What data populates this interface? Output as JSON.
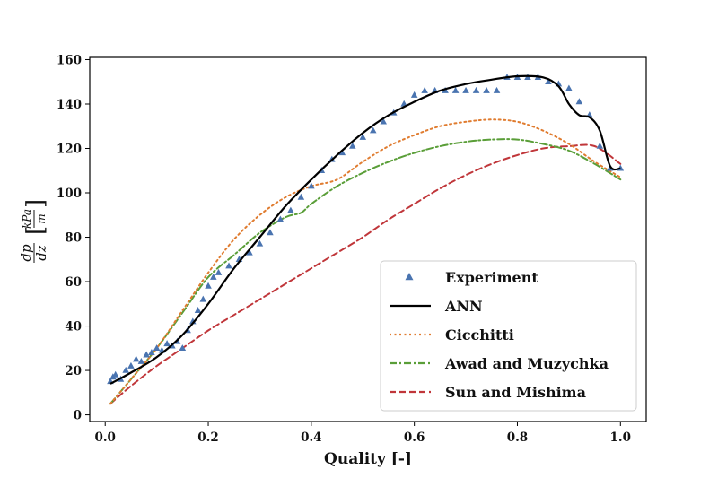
{
  "chart_data": {
    "type": "line",
    "title": "",
    "xlabel": "Quality [-]",
    "ylabel": {
      "numerator": "dp",
      "denominator": "dz",
      "unit_numerator": "kPa",
      "unit_denominator": "m"
    },
    "xlim": [
      -0.03,
      1.05
    ],
    "ylim": [
      -3,
      161
    ],
    "x_ticks": [
      0.0,
      0.2,
      0.4,
      0.6,
      0.8,
      1.0
    ],
    "x_tick_labels": [
      "0.0",
      "0.2",
      "0.4",
      "0.6",
      "0.8",
      "1.0"
    ],
    "y_ticks": [
      0,
      20,
      40,
      60,
      80,
      100,
      120,
      140,
      160
    ],
    "y_tick_labels": [
      "0",
      "20",
      "40",
      "60",
      "80",
      "100",
      "120",
      "140",
      "160"
    ],
    "grid": false,
    "legend_position": "lower-right",
    "series": [
      {
        "name": "Experiment",
        "style": "markers",
        "marker": "triangle",
        "color": "#4a74b0",
        "x": [
          0.01,
          0.015,
          0.02,
          0.03,
          0.04,
          0.05,
          0.06,
          0.07,
          0.08,
          0.09,
          0.1,
          0.11,
          0.12,
          0.13,
          0.14,
          0.15,
          0.16,
          0.17,
          0.18,
          0.19,
          0.2,
          0.21,
          0.22,
          0.24,
          0.26,
          0.28,
          0.3,
          0.32,
          0.34,
          0.36,
          0.38,
          0.4,
          0.42,
          0.44,
          0.46,
          0.48,
          0.5,
          0.52,
          0.54,
          0.56,
          0.58,
          0.6,
          0.62,
          0.64,
          0.66,
          0.68,
          0.7,
          0.72,
          0.74,
          0.76,
          0.78,
          0.8,
          0.82,
          0.84,
          0.86,
          0.88,
          0.9,
          0.92,
          0.94,
          0.96,
          0.98,
          1.0
        ],
        "y": [
          15,
          17,
          18,
          16,
          20,
          22,
          25,
          24,
          27,
          28,
          30,
          29,
          32,
          31,
          33,
          30,
          38,
          42,
          47,
          52,
          58,
          62,
          64,
          67,
          70,
          73,
          77,
          82,
          88,
          92,
          98,
          103,
          110,
          115,
          118,
          121,
          125,
          128,
          132,
          136,
          140,
          144,
          146,
          146,
          146,
          146,
          146,
          146,
          146,
          146,
          152,
          152,
          152,
          152,
          150,
          149,
          147,
          141,
          135,
          121,
          111,
          111
        ]
      },
      {
        "name": "ANN",
        "style": "solid",
        "color": "#000000",
        "x": [
          0.01,
          0.05,
          0.1,
          0.15,
          0.2,
          0.25,
          0.3,
          0.35,
          0.4,
          0.45,
          0.5,
          0.55,
          0.6,
          0.65,
          0.7,
          0.75,
          0.8,
          0.85,
          0.88,
          0.9,
          0.92,
          0.94,
          0.96,
          0.98,
          1.0
        ],
        "y": [
          14,
          19,
          26,
          36,
          50,
          66,
          80,
          94,
          106,
          117,
          127,
          135,
          141,
          146,
          149,
          151,
          152.5,
          152,
          148,
          140,
          135,
          134,
          128,
          112,
          111
        ]
      },
      {
        "name": "Cicchitti",
        "style": "dotted",
        "color": "#e07c30",
        "x": [
          0.01,
          0.05,
          0.1,
          0.15,
          0.2,
          0.25,
          0.3,
          0.35,
          0.4,
          0.45,
          0.5,
          0.55,
          0.6,
          0.65,
          0.7,
          0.75,
          0.8,
          0.85,
          0.9,
          0.95,
          1.0
        ],
        "y": [
          5,
          16,
          30,
          47,
          64,
          79,
          90,
          98,
          103,
          106,
          114,
          121,
          126,
          130,
          132,
          133,
          132,
          128,
          122,
          114,
          107
        ]
      },
      {
        "name": "Awad and Muzychka",
        "style": "dashdot",
        "color": "#5a9e38",
        "x": [
          0.01,
          0.05,
          0.1,
          0.15,
          0.2,
          0.25,
          0.3,
          0.35,
          0.38,
          0.4,
          0.45,
          0.5,
          0.55,
          0.6,
          0.65,
          0.7,
          0.75,
          0.8,
          0.85,
          0.9,
          0.95,
          1.0
        ],
        "y": [
          5,
          16,
          30,
          46,
          62,
          72,
          82,
          89,
          91,
          95,
          103,
          109,
          114,
          118,
          121,
          123,
          124,
          124,
          122,
          119,
          113,
          106
        ]
      },
      {
        "name": "Sun and Mishima",
        "style": "dashed",
        "color": "#c0363a",
        "x": [
          0.01,
          0.05,
          0.1,
          0.15,
          0.2,
          0.25,
          0.3,
          0.35,
          0.4,
          0.45,
          0.5,
          0.55,
          0.6,
          0.65,
          0.7,
          0.75,
          0.8,
          0.85,
          0.9,
          0.95,
          1.0
        ],
        "y": [
          5,
          13,
          22,
          30,
          38,
          45,
          52,
          59,
          66,
          73,
          80,
          88,
          95,
          102,
          108,
          113,
          117,
          120,
          121,
          121,
          113
        ]
      }
    ]
  }
}
